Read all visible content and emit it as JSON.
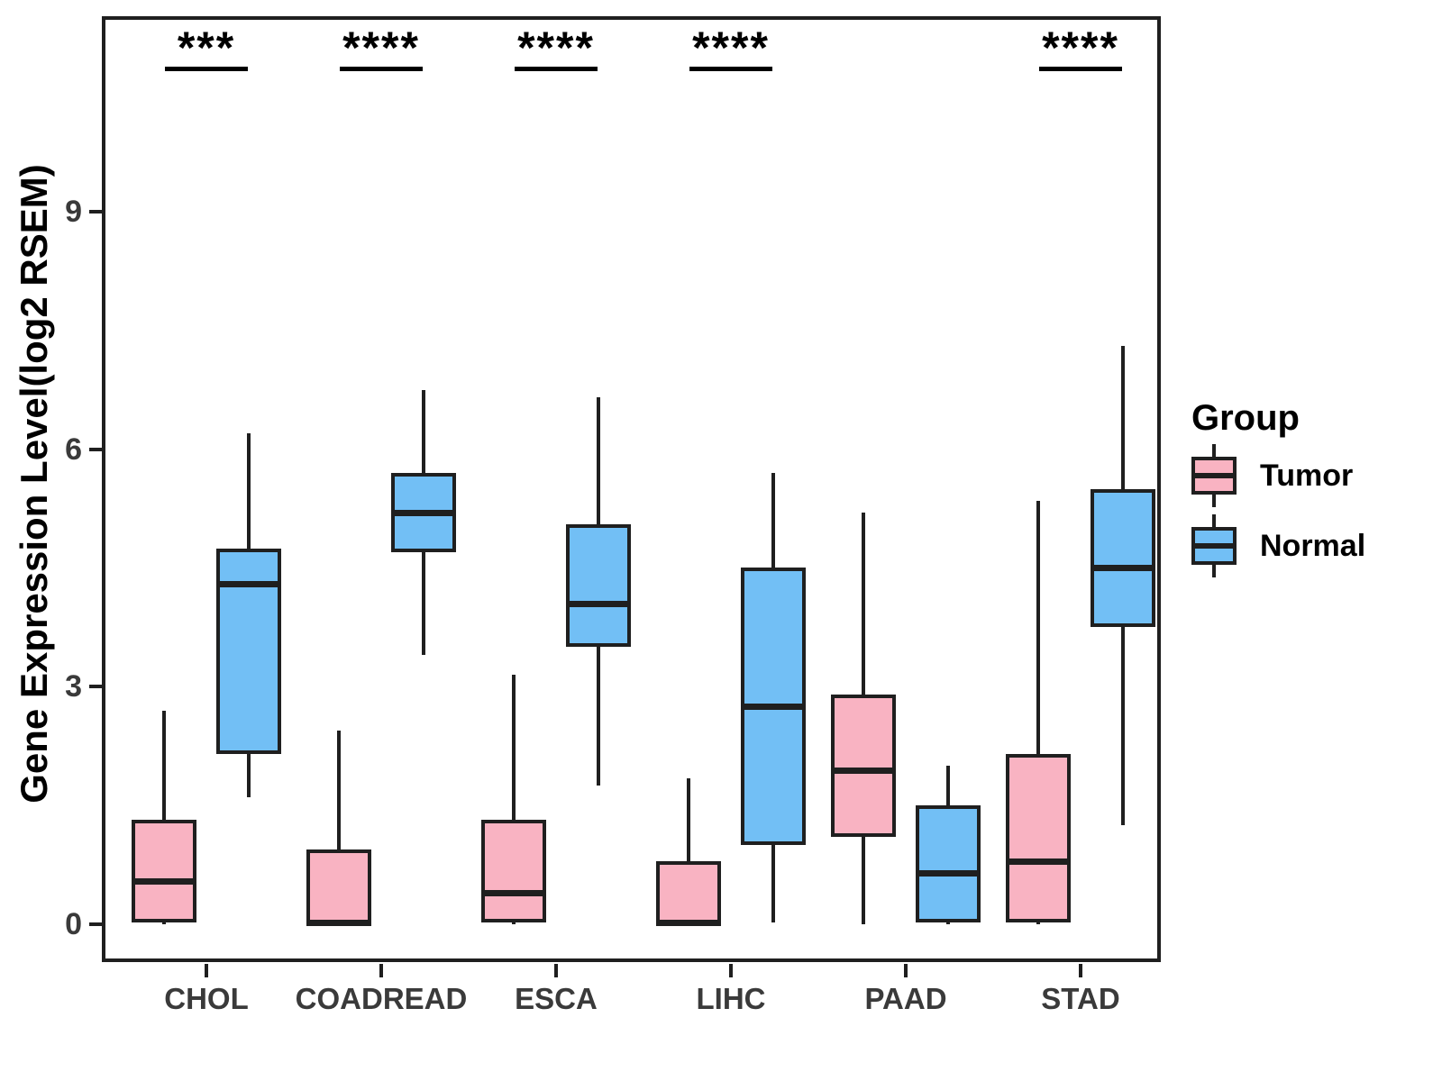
{
  "chart_data": {
    "type": "boxplot",
    "title": "",
    "ylabel": "Gene Expression Level(log2 RSEM)",
    "xlabel": "",
    "categories": [
      "CHOL",
      "COADREAD",
      "ESCA",
      "LIHC",
      "PAAD",
      "STAD"
    ],
    "yticks": [
      0,
      3,
      6,
      9
    ],
    "ylim": [
      -0.43,
      11.42
    ],
    "grid": false,
    "legend_position": "right",
    "colors": {
      "tumor_fill": "#F9B3C2",
      "normal_fill": "#72BFF5",
      "stroke": "#1f1f1f",
      "axis_text": "#3a3a3a"
    },
    "legend": {
      "title": "Group",
      "entries": [
        {
          "label": "Tumor",
          "color": "#F9B3C2"
        },
        {
          "label": "Normal",
          "color": "#72BFF5"
        }
      ]
    },
    "significance": [
      {
        "category": "CHOL",
        "label": "***"
      },
      {
        "category": "COADREAD",
        "label": "****"
      },
      {
        "category": "ESCA",
        "label": "****"
      },
      {
        "category": "LIHC",
        "label": "****"
      },
      {
        "category": "STAD",
        "label": "****"
      }
    ],
    "series": [
      {
        "name": "Tumor",
        "fill": "#F9B3C2",
        "boxes": [
          {
            "category": "CHOL",
            "low": 0,
            "q1": 0.02,
            "median": 0.55,
            "q3": 1.32,
            "high": 2.7
          },
          {
            "category": "COADREAD",
            "low": 0,
            "q1": 0,
            "median": 0.02,
            "q3": 0.95,
            "high": 2.45
          },
          {
            "category": "ESCA",
            "low": 0,
            "q1": 0.02,
            "median": 0.4,
            "q3": 1.32,
            "high": 3.15
          },
          {
            "category": "LIHC",
            "low": 0,
            "q1": 0,
            "median": 0.02,
            "q3": 0.8,
            "high": 1.85
          },
          {
            "category": "PAAD",
            "low": 0,
            "q1": 1.1,
            "median": 1.95,
            "q3": 2.9,
            "high": 5.2
          },
          {
            "category": "STAD",
            "low": 0,
            "q1": 0.02,
            "median": 0.8,
            "q3": 2.15,
            "high": 5.35
          }
        ]
      },
      {
        "name": "Normal",
        "fill": "#72BFF5",
        "boxes": [
          {
            "category": "CHOL",
            "low": 1.6,
            "q1": 2.15,
            "median": 4.3,
            "q3": 4.75,
            "high": 6.2
          },
          {
            "category": "COADREAD",
            "low": 3.4,
            "q1": 4.7,
            "median": 5.2,
            "q3": 5.7,
            "high": 6.75
          },
          {
            "category": "ESCA",
            "low": 1.75,
            "q1": 3.5,
            "median": 4.05,
            "q3": 5.05,
            "high": 6.65
          },
          {
            "category": "LIHC",
            "low": 0.02,
            "q1": 1.0,
            "median": 2.75,
            "q3": 4.5,
            "high": 5.7
          },
          {
            "category": "PAAD",
            "low": 0,
            "q1": 0.02,
            "median": 0.65,
            "q3": 1.5,
            "high": 2.0
          },
          {
            "category": "STAD",
            "low": 1.25,
            "q1": 3.75,
            "median": 4.5,
            "q3": 5.5,
            "high": 7.3
          }
        ]
      }
    ]
  }
}
